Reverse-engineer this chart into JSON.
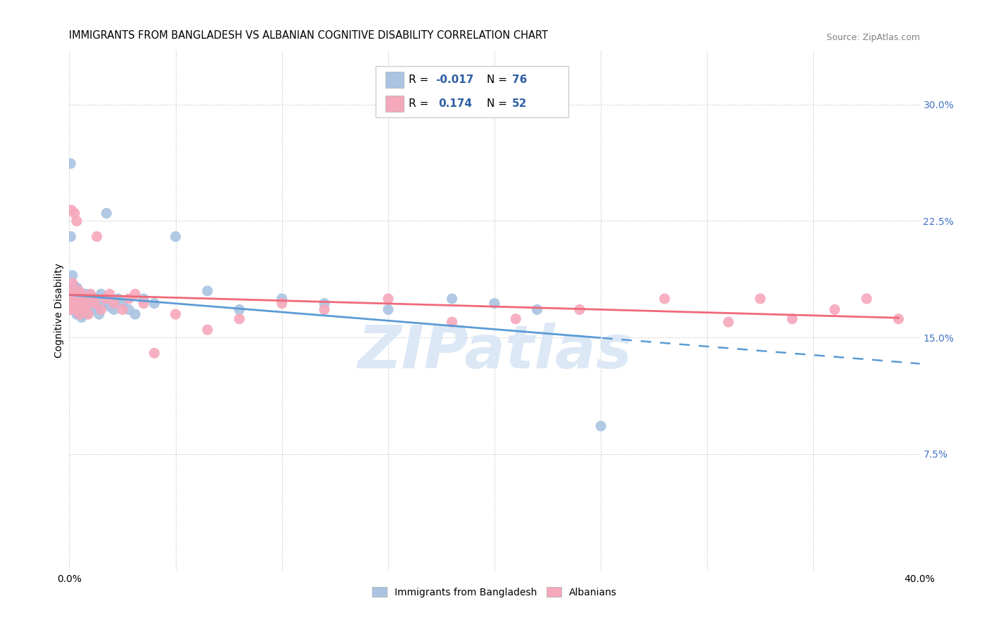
{
  "title": "IMMIGRANTS FROM BANGLADESH VS ALBANIAN COGNITIVE DISABILITY CORRELATION CHART",
  "source": "Source: ZipAtlas.com",
  "ylabel": "Cognitive Disability",
  "ytick_labels": [
    "7.5%",
    "15.0%",
    "22.5%",
    "30.0%"
  ],
  "ytick_values": [
    0.075,
    0.15,
    0.225,
    0.3
  ],
  "xlim": [
    0.0,
    0.4
  ],
  "ylim": [
    0.0,
    0.335
  ],
  "color_bangladesh": "#aac4e2",
  "color_albanian": "#f5a8bc",
  "color_bangladesh_line": "#5b9bd5",
  "color_albanian_line": "#f0697a",
  "color_r_value": "#2e5fa3",
  "color_tick": "#4472c4",
  "watermark_text": "ZIPatlas",
  "watermark_color": "#dce8f5",
  "legend_label1": "Immigrants from Bangladesh",
  "legend_label2": "Albanians",
  "bangladesh_x": [
    0.0004,
    0.0006,
    0.0007,
    0.0009,
    0.001,
    0.0012,
    0.0013,
    0.0015,
    0.0017,
    0.0018,
    0.002,
    0.0022,
    0.0023,
    0.0025,
    0.0027,
    0.0028,
    0.003,
    0.0032,
    0.0033,
    0.0035,
    0.0037,
    0.0038,
    0.004,
    0.0042,
    0.0043,
    0.0045,
    0.0047,
    0.0048,
    0.005,
    0.0052,
    0.0053,
    0.0055,
    0.0057,
    0.0058,
    0.006,
    0.0062,
    0.0063,
    0.0065,
    0.0067,
    0.0068,
    0.007,
    0.0072,
    0.0073,
    0.0075,
    0.0077,
    0.0078,
    0.008,
    0.0085,
    0.009,
    0.0095,
    0.01,
    0.011,
    0.012,
    0.013,
    0.014,
    0.015,
    0.016,
    0.0175,
    0.019,
    0.021,
    0.023,
    0.025,
    0.028,
    0.031,
    0.035,
    0.04,
    0.05,
    0.065,
    0.08,
    0.1,
    0.12,
    0.15,
    0.18,
    0.2,
    0.22,
    0.25
  ],
  "bangladesh_y": [
    0.177,
    0.262,
    0.215,
    0.175,
    0.178,
    0.18,
    0.172,
    0.19,
    0.175,
    0.168,
    0.182,
    0.17,
    0.175,
    0.183,
    0.168,
    0.178,
    0.172,
    0.17,
    0.175,
    0.165,
    0.182,
    0.172,
    0.178,
    0.168,
    0.175,
    0.17,
    0.165,
    0.178,
    0.172,
    0.168,
    0.176,
    0.17,
    0.175,
    0.163,
    0.17,
    0.175,
    0.168,
    0.172,
    0.165,
    0.178,
    0.17,
    0.168,
    0.175,
    0.172,
    0.165,
    0.178,
    0.17,
    0.175,
    0.168,
    0.172,
    0.177,
    0.168,
    0.175,
    0.17,
    0.165,
    0.178,
    0.172,
    0.23,
    0.17,
    0.168,
    0.175,
    0.172,
    0.168,
    0.165,
    0.175,
    0.172,
    0.215,
    0.18,
    0.168,
    0.175,
    0.172,
    0.168,
    0.175,
    0.172,
    0.168,
    0.093
  ],
  "albanian_x": [
    0.0005,
    0.0008,
    0.001,
    0.0013,
    0.0015,
    0.0018,
    0.002,
    0.0023,
    0.0025,
    0.0028,
    0.003,
    0.0033,
    0.0035,
    0.0038,
    0.004,
    0.0045,
    0.005,
    0.0055,
    0.006,
    0.0065,
    0.007,
    0.008,
    0.009,
    0.01,
    0.011,
    0.012,
    0.013,
    0.015,
    0.017,
    0.019,
    0.021,
    0.025,
    0.028,
    0.031,
    0.035,
    0.04,
    0.05,
    0.065,
    0.08,
    0.1,
    0.12,
    0.15,
    0.18,
    0.21,
    0.24,
    0.28,
    0.31,
    0.325,
    0.34,
    0.36,
    0.375,
    0.39
  ],
  "albanian_y": [
    0.168,
    0.178,
    0.232,
    0.175,
    0.185,
    0.17,
    0.18,
    0.172,
    0.23,
    0.175,
    0.168,
    0.178,
    0.225,
    0.17,
    0.175,
    0.18,
    0.165,
    0.178,
    0.172,
    0.168,
    0.175,
    0.17,
    0.165,
    0.178,
    0.175,
    0.172,
    0.215,
    0.168,
    0.175,
    0.178,
    0.172,
    0.168,
    0.175,
    0.178,
    0.172,
    0.14,
    0.165,
    0.155,
    0.162,
    0.172,
    0.168,
    0.175,
    0.16,
    0.162,
    0.168,
    0.175,
    0.16,
    0.175,
    0.162,
    0.168,
    0.175,
    0.162
  ],
  "title_fontsize": 10.5,
  "axis_label_fontsize": 10,
  "tick_fontsize": 10,
  "legend_fontsize": 10,
  "source_fontsize": 9
}
